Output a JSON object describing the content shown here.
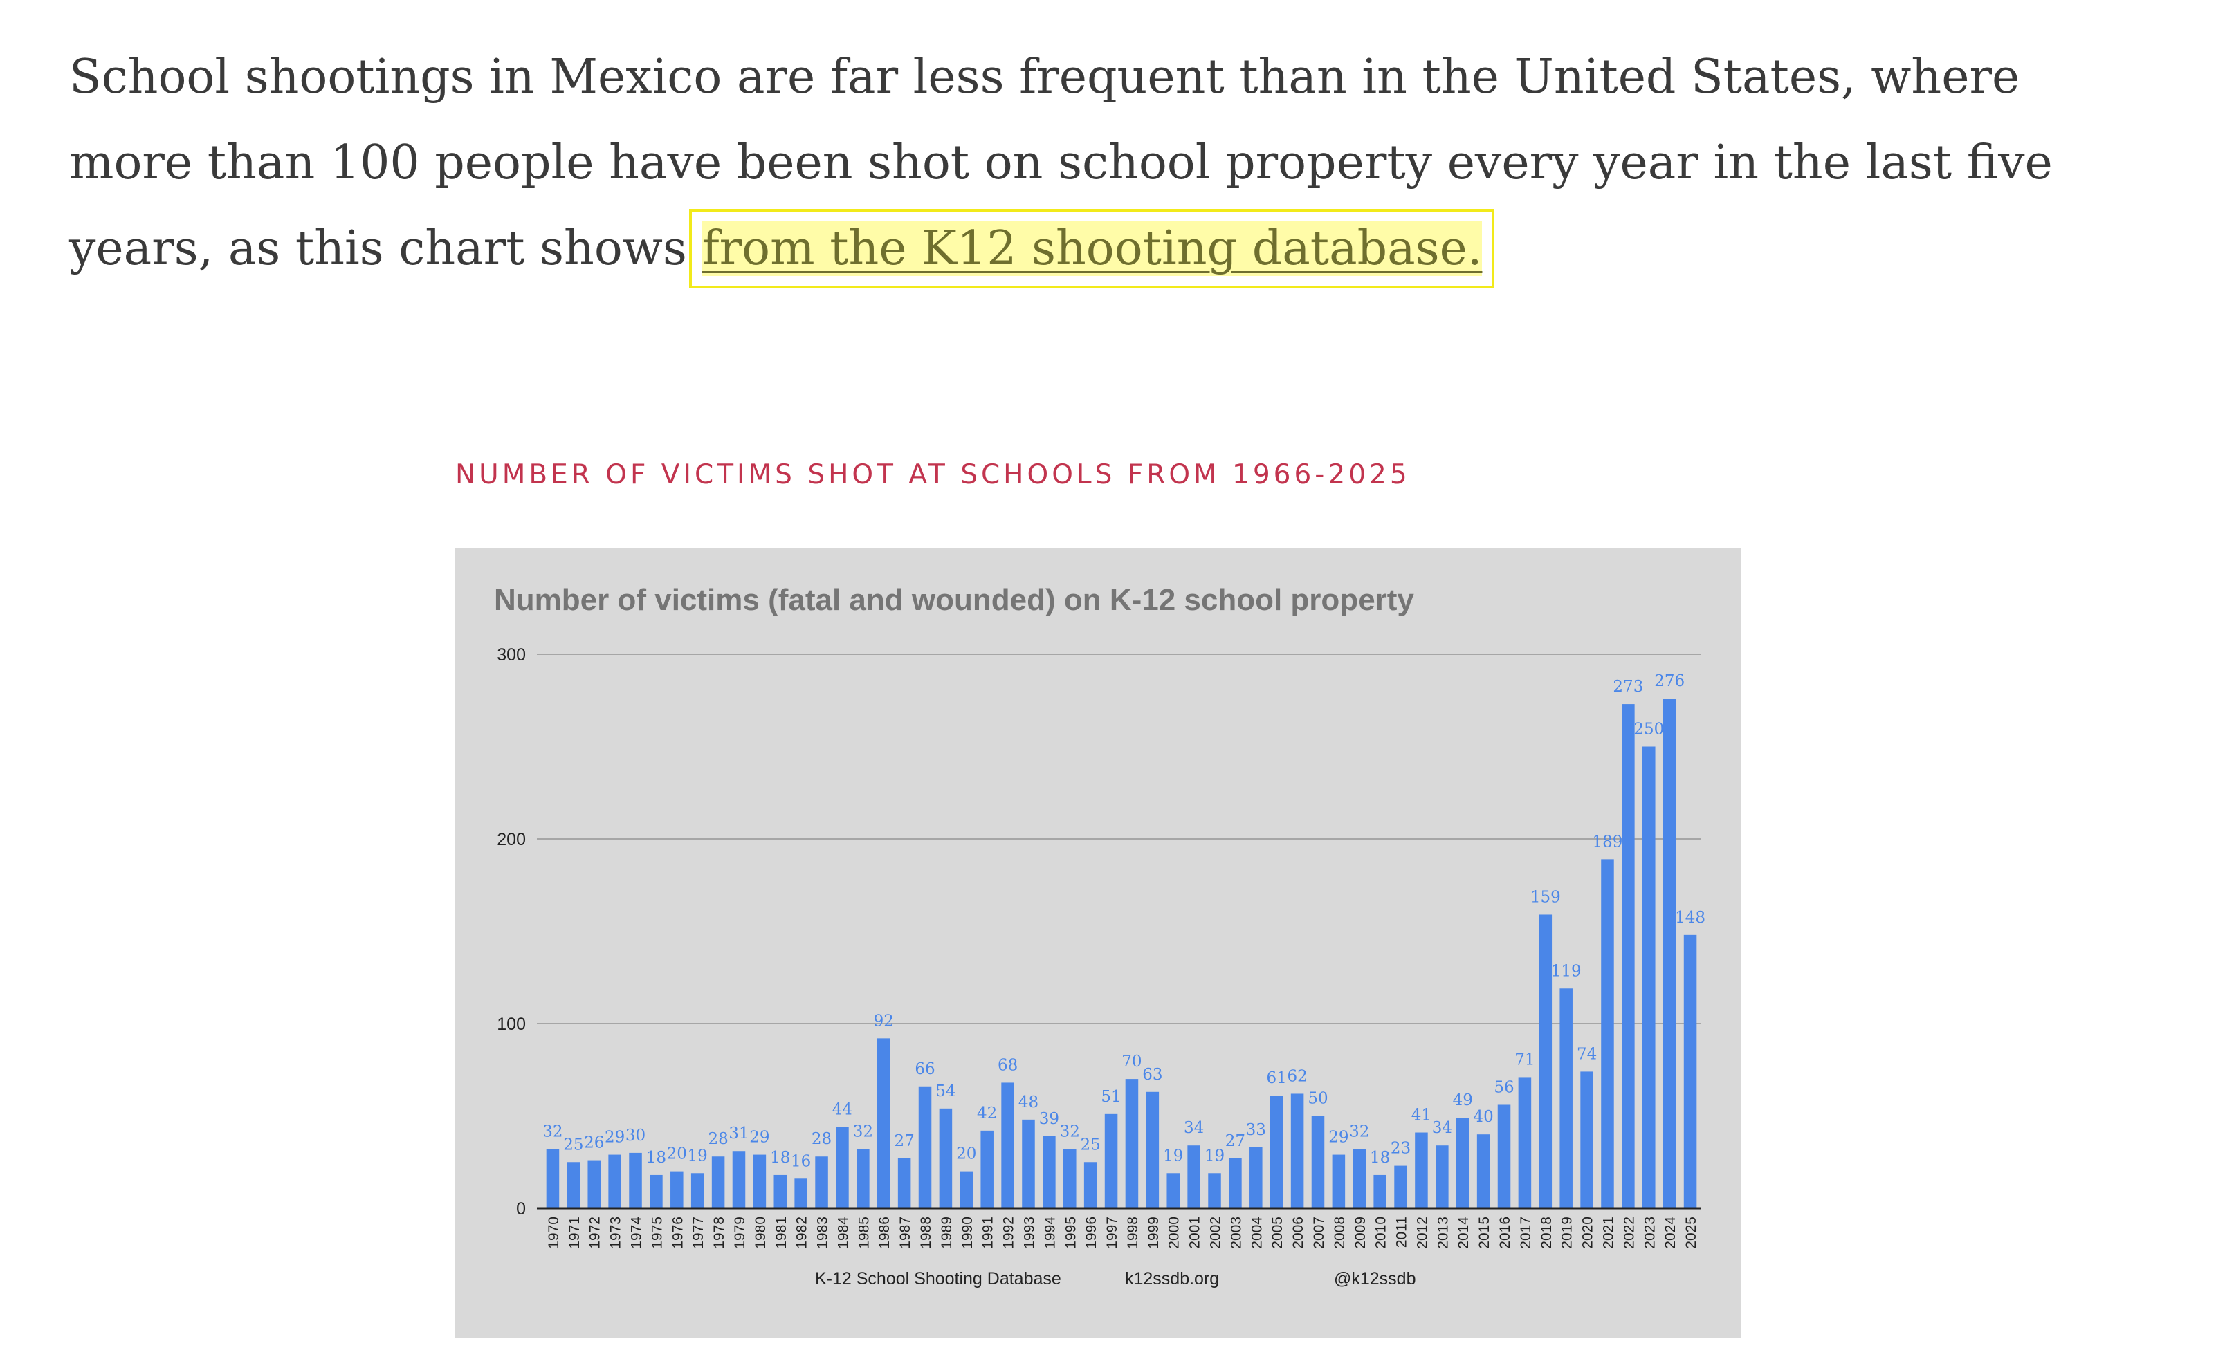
{
  "article": {
    "paragraph_text": "School shootings in Mexico are far less frequent than in the United States, where more than 100 people have been shot on school property every year in the last five years, as this chart shows ",
    "link_text": "from the K12 shooting database."
  },
  "figure": {
    "caption": "NUMBER OF VICTIMS SHOT AT SCHOOLS FROM 1966-2025"
  },
  "colors": {
    "bar": "#4a86e8",
    "label": "#4a86e8",
    "chart_background": "#d9d9d9",
    "gridline": "#a6a6a6",
    "caption": "#c2344e"
  },
  "chart_data": {
    "type": "bar",
    "title": "Number of victims (fatal and wounded) on K-12 school property",
    "xlabel": "",
    "ylabel": "",
    "ylim": [
      0,
      300
    ],
    "yticks": [
      0,
      100,
      200,
      300
    ],
    "grid": true,
    "categories": [
      "1970",
      "1971",
      "1972",
      "1973",
      "1974",
      "1975",
      "1976",
      "1977",
      "1978",
      "1979",
      "1980",
      "1981",
      "1982",
      "1983",
      "1984",
      "1985",
      "1986",
      "1987",
      "1988",
      "1989",
      "1990",
      "1991",
      "1992",
      "1993",
      "1994",
      "1995",
      "1996",
      "1997",
      "1998",
      "1999",
      "2000",
      "2001",
      "2002",
      "2003",
      "2004",
      "2005",
      "2006",
      "2007",
      "2008",
      "2009",
      "2010",
      "2011",
      "2012",
      "2013",
      "2014",
      "2015",
      "2016",
      "2017",
      "2018",
      "2019",
      "2020",
      "2021",
      "2022",
      "2023",
      "2024",
      "2025"
    ],
    "values": [
      32,
      25,
      26,
      29,
      30,
      18,
      20,
      19,
      28,
      31,
      29,
      18,
      16,
      28,
      44,
      32,
      92,
      27,
      66,
      54,
      20,
      42,
      68,
      48,
      39,
      32,
      25,
      51,
      70,
      63,
      19,
      34,
      19,
      27,
      33,
      61,
      62,
      50,
      29,
      32,
      18,
      23,
      41,
      34,
      49,
      40,
      56,
      71,
      159,
      119,
      74,
      189,
      273,
      250,
      276,
      148
    ],
    "footer": [
      "K-12 School Shooting Database",
      "k12ssdb.org",
      "@k12ssdb"
    ]
  }
}
